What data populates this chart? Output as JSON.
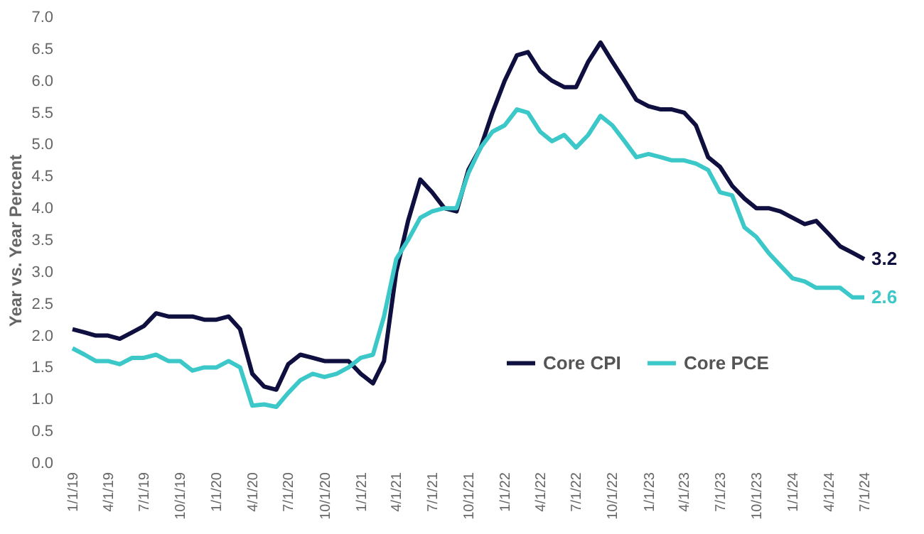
{
  "chart_data": {
    "type": "line",
    "ylabel": "Year vs. Year Percent",
    "x": [
      "2019-01",
      "2019-02",
      "2019-03",
      "2019-04",
      "2019-05",
      "2019-06",
      "2019-07",
      "2019-08",
      "2019-09",
      "2019-10",
      "2019-11",
      "2019-12",
      "2020-01",
      "2020-02",
      "2020-03",
      "2020-04",
      "2020-05",
      "2020-06",
      "2020-07",
      "2020-08",
      "2020-09",
      "2020-10",
      "2020-11",
      "2020-12",
      "2021-01",
      "2021-02",
      "2021-03",
      "2021-04",
      "2021-05",
      "2021-06",
      "2021-07",
      "2021-08",
      "2021-09",
      "2021-10",
      "2021-11",
      "2021-12",
      "2022-01",
      "2022-02",
      "2022-03",
      "2022-04",
      "2022-05",
      "2022-06",
      "2022-07",
      "2022-08",
      "2022-09",
      "2022-10",
      "2022-11",
      "2022-12",
      "2023-01",
      "2023-02",
      "2023-03",
      "2023-04",
      "2023-05",
      "2023-06",
      "2023-07",
      "2023-08",
      "2023-09",
      "2023-10",
      "2023-11",
      "2023-12",
      "2024-01",
      "2024-02",
      "2024-03",
      "2024-04",
      "2024-05",
      "2024-06",
      "2024-07"
    ],
    "series": [
      {
        "name": "Core CPI",
        "color": "#0f0f40",
        "values": [
          2.1,
          2.05,
          2.0,
          2.0,
          1.95,
          2.05,
          2.15,
          2.35,
          2.3,
          2.3,
          2.3,
          2.25,
          2.25,
          2.3,
          2.1,
          1.4,
          1.2,
          1.15,
          1.55,
          1.7,
          1.65,
          1.6,
          1.6,
          1.6,
          1.4,
          1.25,
          1.6,
          3.0,
          3.8,
          4.45,
          4.25,
          4.0,
          3.95,
          4.6,
          4.95,
          5.5,
          6.0,
          6.4,
          6.45,
          6.15,
          6.0,
          5.9,
          5.9,
          6.3,
          6.6,
          6.3,
          6.0,
          5.7,
          5.6,
          5.55,
          5.55,
          5.5,
          5.3,
          4.8,
          4.65,
          4.35,
          4.15,
          4.0,
          4.0,
          3.95,
          3.85,
          3.75,
          3.8,
          3.6,
          3.4,
          3.3,
          3.2
        ],
        "value_labels": [
          null,
          null,
          null,
          null,
          null,
          null,
          null,
          null,
          null,
          null,
          null,
          null,
          null,
          null,
          null,
          null,
          null,
          null,
          null,
          null,
          null,
          null,
          null,
          null,
          null,
          null,
          null,
          null,
          null,
          null,
          null,
          null,
          null,
          null,
          null,
          null,
          null,
          null,
          null,
          null,
          null,
          null,
          null,
          null,
          null,
          null,
          null,
          null,
          null,
          null,
          null,
          null,
          null,
          null,
          null,
          null,
          null,
          null,
          null,
          null,
          null,
          null,
          null,
          null,
          null,
          null,
          "3.2"
        ]
      },
      {
        "name": "Core PCE",
        "color": "#3cc8c8",
        "values": [
          1.8,
          1.7,
          1.6,
          1.6,
          1.55,
          1.65,
          1.65,
          1.7,
          1.6,
          1.6,
          1.45,
          1.5,
          1.5,
          1.6,
          1.5,
          0.9,
          0.92,
          0.88,
          1.1,
          1.3,
          1.4,
          1.35,
          1.4,
          1.5,
          1.65,
          1.7,
          2.3,
          3.2,
          3.5,
          3.85,
          3.95,
          4.0,
          4.0,
          4.55,
          4.95,
          5.2,
          5.3,
          5.55,
          5.5,
          5.2,
          5.05,
          5.15,
          4.95,
          5.15,
          5.45,
          5.3,
          5.05,
          4.8,
          4.85,
          4.8,
          4.75,
          4.75,
          4.7,
          4.6,
          4.25,
          4.2,
          3.7,
          3.55,
          3.3,
          3.1,
          2.9,
          2.85,
          2.75,
          2.75,
          2.75,
          2.6,
          2.6
        ],
        "value_labels": [
          null,
          null,
          null,
          null,
          null,
          null,
          null,
          null,
          null,
          null,
          null,
          null,
          null,
          null,
          null,
          null,
          null,
          null,
          null,
          null,
          null,
          null,
          null,
          null,
          null,
          null,
          null,
          null,
          null,
          null,
          null,
          null,
          null,
          null,
          null,
          null,
          null,
          null,
          null,
          null,
          null,
          null,
          null,
          null,
          null,
          null,
          null,
          null,
          null,
          null,
          null,
          null,
          null,
          null,
          null,
          null,
          null,
          null,
          null,
          null,
          null,
          null,
          null,
          null,
          null,
          null,
          "2.6"
        ]
      }
    ],
    "xlim": [
      "2019-01",
      "2024-07"
    ],
    "xticks": [
      {
        "value": "2019-01",
        "label": "1/1/19"
      },
      {
        "value": "2019-04",
        "label": "4/1/19"
      },
      {
        "value": "2019-07",
        "label": "7/1/19"
      },
      {
        "value": "2019-10",
        "label": "10/1/19"
      },
      {
        "value": "2020-01",
        "label": "1/1/20"
      },
      {
        "value": "2020-04",
        "label": "4/1/20"
      },
      {
        "value": "2020-07",
        "label": "7/1/20"
      },
      {
        "value": "2020-10",
        "label": "10/1/20"
      },
      {
        "value": "2021-01",
        "label": "1/1/21"
      },
      {
        "value": "2021-04",
        "label": "4/1/21"
      },
      {
        "value": "2021-07",
        "label": "7/1/21"
      },
      {
        "value": "2021-10",
        "label": "10/1/21"
      },
      {
        "value": "2022-01",
        "label": "1/1/22"
      },
      {
        "value": "2022-04",
        "label": "4/1/22"
      },
      {
        "value": "2022-07",
        "label": "7/1/22"
      },
      {
        "value": "2022-10",
        "label": "10/1/22"
      },
      {
        "value": "2023-01",
        "label": "1/1/23"
      },
      {
        "value": "2023-04",
        "label": "4/1/23"
      },
      {
        "value": "2023-07",
        "label": "7/1/23"
      },
      {
        "value": "2023-10",
        "label": "10/1/23"
      },
      {
        "value": "2024-01",
        "label": "1/1/24"
      },
      {
        "value": "2024-04",
        "label": "4/1/24"
      },
      {
        "value": "2024-07",
        "label": "7/1/24"
      }
    ],
    "ylim": [
      0,
      7
    ],
    "yticks": [
      {
        "value": 0,
        "label": "0.0"
      },
      {
        "value": 0.5,
        "label": "0.5"
      },
      {
        "value": 1,
        "label": "1.0"
      },
      {
        "value": 1.5,
        "label": "1.5"
      },
      {
        "value": 2,
        "label": "2.0"
      },
      {
        "value": 2.5,
        "label": "2.5"
      },
      {
        "value": 3,
        "label": "3.0"
      },
      {
        "value": 3.5,
        "label": "3.5"
      },
      {
        "value": 4,
        "label": "4.0"
      },
      {
        "value": 4.5,
        "label": "4.5"
      },
      {
        "value": 5,
        "label": "5.0"
      },
      {
        "value": 5.5,
        "label": "5.5"
      },
      {
        "value": 6,
        "label": "6.0"
      },
      {
        "value": 6.5,
        "label": "6.5"
      },
      {
        "value": 7,
        "label": "7.0"
      }
    ],
    "grid": false,
    "legend": "bottom",
    "marker": "none",
    "line_style": "solid"
  }
}
